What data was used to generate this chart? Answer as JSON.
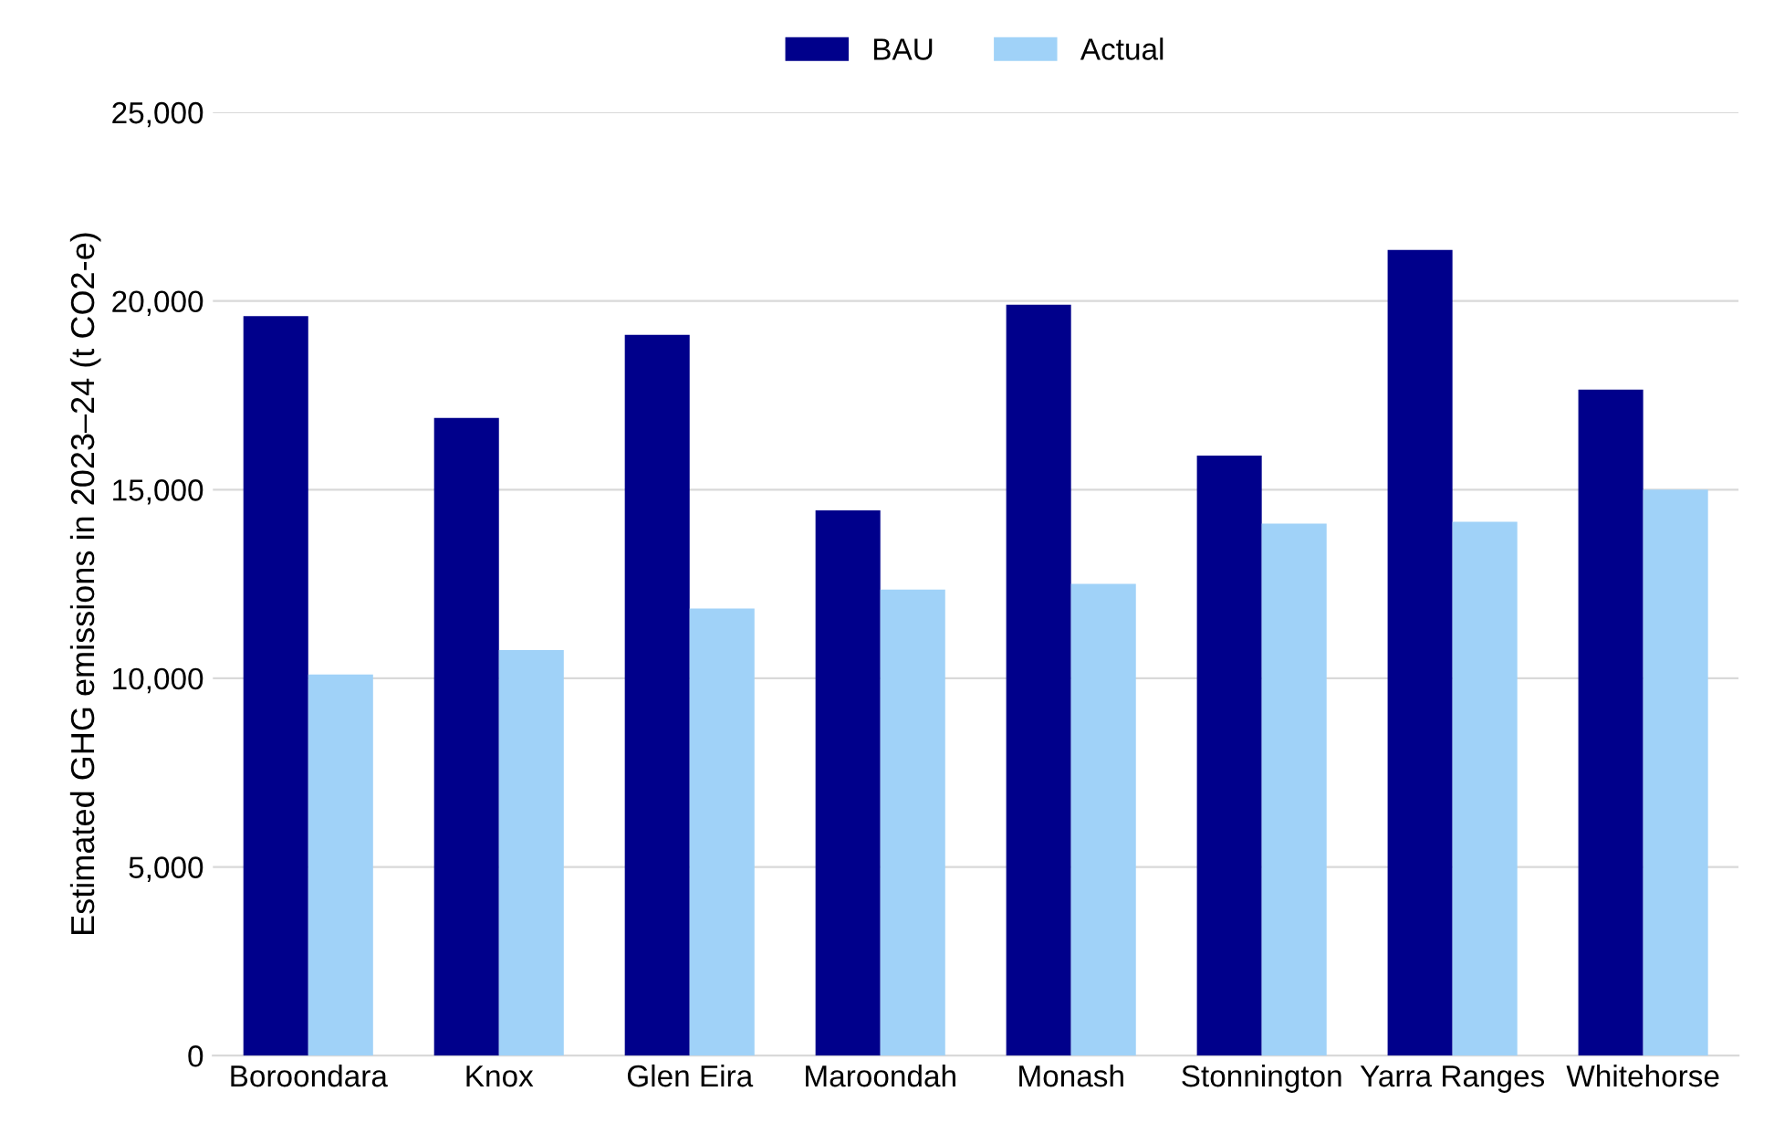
{
  "chart_data": {
    "type": "bar",
    "ylabel": "Estimated GHG emissions in 2023–24 (t CO2-e)",
    "categories": [
      "Boroondara",
      "Knox",
      "Glen Eira",
      "Maroondah",
      "Monash",
      "Stonnington",
      "Yarra Ranges",
      "Whitehorse"
    ],
    "series": [
      {
        "name": "BAU",
        "color": "#00008b",
        "values": [
          19600,
          16900,
          19100,
          14450,
          19900,
          15900,
          21350,
          17650
        ]
      },
      {
        "name": "Actual",
        "color": "#a0d2f8",
        "values": [
          10100,
          10750,
          11850,
          12350,
          12500,
          14100,
          14150,
          15000
        ]
      }
    ],
    "ylim": [
      0,
      25000
    ],
    "yticks": [
      0,
      {
        "value": 5000,
        "label": "5,000"
      },
      {
        "value": 10000,
        "label": "10,000"
      },
      {
        "value": 15000,
        "label": "15,000"
      },
      {
        "value": 20000,
        "label": "20,000"
      },
      {
        "value": 25000,
        "label": "25,000"
      }
    ],
    "grid": "y",
    "legend": "top"
  }
}
